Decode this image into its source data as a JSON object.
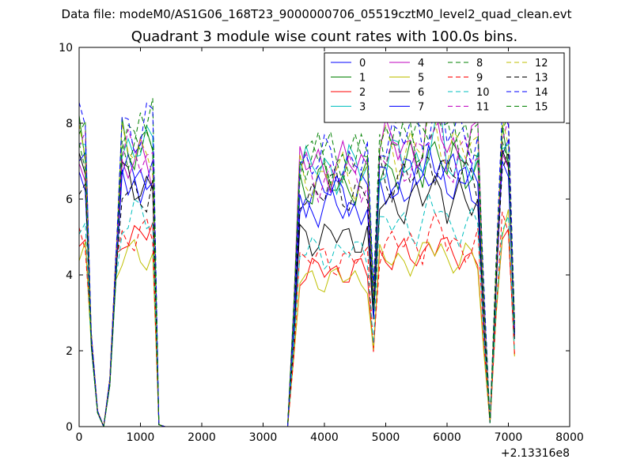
{
  "suptitle": "Data file: modeM0/AS1G06_168T23_9000000706_05519cztM0_level2_quad_clean.evt",
  "chart_data": {
    "type": "line",
    "title": "Quadrant 3 module wise count rates with 100.0s bins.",
    "xlabel": "",
    "ylabel": "",
    "x_offset_label": "+2.13316e8",
    "xlim": [
      0,
      8000
    ],
    "ylim": [
      0,
      10
    ],
    "xticks": [
      0,
      1000,
      2000,
      3000,
      4000,
      5000,
      6000,
      7000,
      8000
    ],
    "yticks": [
      0,
      2,
      4,
      6,
      8,
      10
    ],
    "grid": false,
    "legend_position": "top-right",
    "legend_columns": 4,
    "x": [
      0,
      100,
      200,
      300,
      400,
      500,
      600,
      700,
      800,
      900,
      1000,
      1100,
      1200,
      1300,
      1400,
      1500,
      1600,
      1700,
      1800,
      1900,
      2000,
      2100,
      2200,
      2300,
      2400,
      2500,
      2600,
      2700,
      2800,
      2900,
      3000,
      3100,
      3200,
      3300,
      3400,
      3500,
      3600,
      3700,
      3800,
      3900,
      4000,
      4100,
      4200,
      4300,
      4400,
      4500,
      4600,
      4700,
      4800,
      4900,
      5000,
      5100,
      5200,
      5300,
      5400,
      5500,
      5600,
      5700,
      5800,
      5900,
      6000,
      6100,
      6200,
      6300,
      6400,
      6500,
      6600,
      6700,
      6800,
      6900,
      7000,
      7100
    ],
    "series": [
      {
        "name": "0",
        "color": "#0000ff",
        "style": "solid"
      },
      {
        "name": "1",
        "color": "#008000",
        "style": "solid"
      },
      {
        "name": "2",
        "color": "#ff0000",
        "style": "solid"
      },
      {
        "name": "3",
        "color": "#00bfbf",
        "style": "solid"
      },
      {
        "name": "4",
        "color": "#bf00bf",
        "style": "solid"
      },
      {
        "name": "5",
        "color": "#bfbf00",
        "style": "solid"
      },
      {
        "name": "6",
        "color": "#000000",
        "style": "solid"
      },
      {
        "name": "7",
        "color": "#0000ff",
        "style": "solid"
      },
      {
        "name": "8",
        "color": "#008000",
        "style": "dashed"
      },
      {
        "name": "9",
        "color": "#ff0000",
        "style": "dashed"
      },
      {
        "name": "10",
        "color": "#00bfbf",
        "style": "dashed"
      },
      {
        "name": "11",
        "color": "#bf00bf",
        "style": "dashed"
      },
      {
        "name": "12",
        "color": "#bfbf00",
        "style": "dashed"
      },
      {
        "name": "13",
        "color": "#000000",
        "style": "dashed"
      },
      {
        "name": "14",
        "color": "#0000ff",
        "style": "dashed"
      },
      {
        "name": "15",
        "color": "#008000",
        "style": "dashed"
      }
    ],
    "segments": [
      {
        "x_start": 0,
        "x_end": 1300,
        "levels": [
          6.6,
          7.5,
          5.1,
          7.3,
          6.9,
          4.5,
          6.4,
          6.6,
          7.8,
          5.0,
          5.5,
          7.1,
          7.3,
          6.2,
          7.9,
          7.6
        ]
      },
      {
        "x_start": 3500,
        "x_end": 4800,
        "levels": [
          5.8,
          6.4,
          4.1,
          6.8,
          6.9,
          3.9,
          5.0,
          6.2,
          7.2,
          4.4,
          4.6,
          6.6,
          6.6,
          6.2,
          7.0,
          7.0
        ]
      },
      {
        "x_start": 4800,
        "x_end": 6600,
        "levels": [
          6.3,
          6.8,
          4.5,
          7.0,
          7.4,
          4.4,
          5.9,
          6.6,
          7.7,
          4.8,
          5.3,
          7.1,
          7.3,
          6.6,
          7.7,
          7.6
        ]
      },
      {
        "x_start": 6800,
        "x_end": 7100,
        "levels": [
          6.9,
          7.4,
          5.4,
          7.3,
          7.3,
          5.3,
          6.6,
          7.0,
          8.0,
          5.5,
          5.7,
          7.4,
          7.6,
          7.0,
          7.9,
          7.8
        ]
      }
    ]
  }
}
